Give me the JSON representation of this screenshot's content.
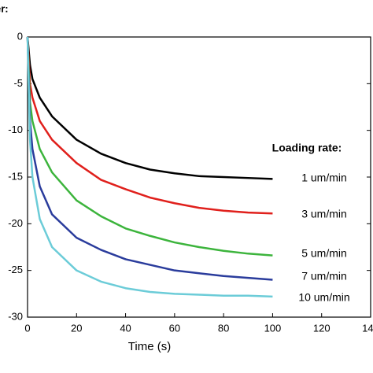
{
  "chart_data": {
    "type": "line",
    "header_text": "er:",
    "x_label": "Time (s)",
    "legend_title": "Loading rate:",
    "x": [
      0,
      1,
      2,
      5,
      10,
      20,
      30,
      40,
      50,
      60,
      70,
      80,
      90,
      100
    ],
    "series": [
      {
        "name": "1 um/min",
        "color": "#000000",
        "values": [
          0,
          -3,
          -4.5,
          -6.5,
          -8.5,
          -11,
          -12.5,
          -13.5,
          -14.2,
          -14.6,
          -14.9,
          -15,
          -15.1,
          -15.2
        ]
      },
      {
        "name": "3 um/min",
        "color": "#e0201c",
        "values": [
          0,
          -5,
          -6.5,
          -9,
          -11,
          -13.5,
          -15.3,
          -16.3,
          -17.2,
          -17.8,
          -18.3,
          -18.6,
          -18.8,
          -18.9
        ]
      },
      {
        "name": "5 um/min",
        "color": "#3cb43c",
        "values": [
          0,
          -7,
          -9,
          -12,
          -14.5,
          -17.5,
          -19.2,
          -20.5,
          -21.3,
          -22,
          -22.5,
          -22.9,
          -23.2,
          -23.4
        ]
      },
      {
        "name": "7 um/min",
        "color": "#2a3c9c",
        "values": [
          0,
          -9,
          -12,
          -16,
          -19,
          -21.5,
          -22.8,
          -23.8,
          -24.4,
          -25,
          -25.3,
          -25.6,
          -25.8,
          -26
        ]
      },
      {
        "name": "10 um/min",
        "color": "#6cccd8",
        "values": [
          0,
          -11,
          -15,
          -19.5,
          -22.5,
          -25,
          -26.2,
          -26.9,
          -27.3,
          -27.5,
          -27.6,
          -27.7,
          -27.7,
          -27.8
        ]
      }
    ],
    "xlim": [
      0,
      140
    ],
    "xticks": [
      0,
      20,
      40,
      60,
      80,
      100,
      120,
      140
    ],
    "ylim": [
      -30,
      0
    ],
    "yticks": [
      0,
      -5,
      -10,
      -15,
      -20,
      -25,
      -30
    ],
    "grid": false
  }
}
